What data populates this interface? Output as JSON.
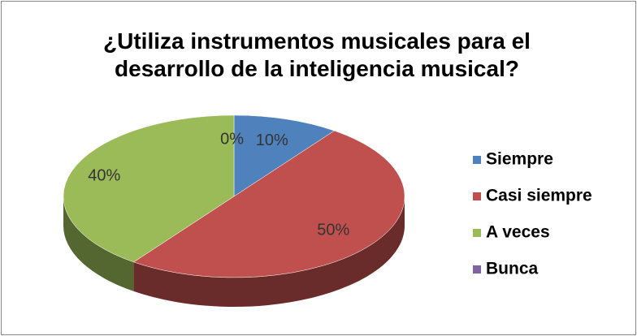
{
  "chart_data": {
    "type": "pie3d",
    "title": "¿Utiliza instrumentos musicales para el desarrollo de la inteligencia musical?",
    "categories": [
      "Siempre",
      "Casi siempre",
      "A veces",
      "Bunca"
    ],
    "values": [
      10,
      50,
      40,
      0
    ],
    "value_labels": [
      "10%",
      "50%",
      "40%",
      "0%"
    ],
    "colors": [
      "#4f81bd",
      "#c0504d",
      "#9bbb59",
      "#8064a2"
    ],
    "legend": "right"
  }
}
